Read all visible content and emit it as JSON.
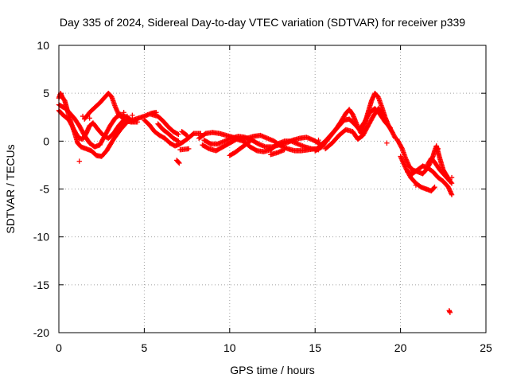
{
  "chart_data": {
    "type": "scatter",
    "title": "Day 335 of 2024, Sidereal Day-to-day VTEC variation (SDTVAR) for receiver p339",
    "xlabel": "GPS time / hours",
    "ylabel": "SDTVAR / TECUs",
    "xlim": [
      0,
      25
    ],
    "ylim": [
      -20,
      10
    ],
    "xticks": [
      0,
      5,
      10,
      15,
      20,
      25
    ],
    "yticks": [
      -20,
      -15,
      -10,
      -5,
      0,
      5,
      10
    ],
    "xtick_labels": [
      "0",
      "5",
      "10",
      "15",
      "20",
      "25"
    ],
    "ytick_labels": [
      "-20",
      "-15",
      "-10",
      "-5",
      "0",
      "5",
      "10"
    ],
    "grid": true,
    "marker": "+",
    "color": "#ff0000",
    "series": [
      {
        "name": "SDTVAR",
        "traces": [
          [
            [
              0,
              4.5
            ],
            [
              0.1,
              5.0
            ],
            [
              0.2,
              4.6
            ],
            [
              0.35,
              4.2
            ],
            [
              0.5,
              3.2
            ],
            [
              0.7,
              2.0
            ],
            [
              0.9,
              1.0
            ],
            [
              1.1,
              -0.2
            ],
            [
              1.3,
              -0.6
            ],
            [
              1.6,
              -0.8
            ],
            [
              1.9,
              -1.0
            ],
            [
              2.2,
              -1.5
            ],
            [
              2.5,
              -1.6
            ],
            [
              2.8,
              -1.0
            ],
            [
              3.2,
              0.2
            ],
            [
              3.6,
              1.2
            ],
            [
              4.0,
              2.0
            ],
            [
              4.5,
              2.3
            ],
            [
              5.0,
              2.6
            ],
            [
              5.4,
              2.9
            ],
            [
              5.7,
              3.0
            ]
          ],
          [
            [
              0,
              3.2
            ],
            [
              0.2,
              2.8
            ],
            [
              0.4,
              2.5
            ],
            [
              0.6,
              2.2
            ],
            [
              0.8,
              1.5
            ],
            [
              1.0,
              0.8
            ],
            [
              1.2,
              0.3
            ],
            [
              1.4,
              0.2
            ],
            [
              1.6,
              0.8
            ],
            [
              1.8,
              1.6
            ],
            [
              2.0,
              1.9
            ],
            [
              2.3,
              1.2
            ],
            [
              2.6,
              0.6
            ],
            [
              2.9,
              0.3
            ],
            [
              3.2,
              0.8
            ],
            [
              3.5,
              1.6
            ],
            [
              3.8,
              2.2
            ]
          ],
          [
            [
              0,
              3.8
            ],
            [
              0.2,
              3.6
            ],
            [
              0.4,
              3.4
            ],
            [
              0.6,
              3.0
            ],
            [
              0.9,
              2.4
            ],
            [
              1.2,
              1.6
            ],
            [
              1.5,
              0.6
            ],
            [
              1.8,
              -0.2
            ],
            [
              2.1,
              -0.6
            ],
            [
              2.4,
              -0.4
            ],
            [
              2.7,
              0.6
            ],
            [
              3.0,
              1.6
            ],
            [
              3.3,
              2.4
            ],
            [
              3.6,
              2.8
            ],
            [
              4.0,
              2.5
            ],
            [
              4.4,
              2.0
            ]
          ],
          [
            [
              1.5,
              2.3
            ],
            [
              1.8,
              3.0
            ],
            [
              2.1,
              3.5
            ],
            [
              2.4,
              4.0
            ],
            [
              2.7,
              4.6
            ],
            [
              2.9,
              5.0
            ],
            [
              3.1,
              4.6
            ],
            [
              3.3,
              3.6
            ],
            [
              3.5,
              2.8
            ],
            [
              3.8,
              2.3
            ],
            [
              4.2,
              2.0
            ],
            [
              4.6,
              2.0
            ]
          ],
          [
            [
              5.0,
              2.2
            ],
            [
              5.3,
              1.7
            ],
            [
              5.6,
              1.0
            ],
            [
              5.9,
              0.6
            ],
            [
              6.2,
              0.3
            ],
            [
              6.5,
              -0.2
            ],
            [
              6.8,
              -0.5
            ],
            [
              7.1,
              -0.3
            ],
            [
              7.5,
              0.2
            ],
            [
              7.9,
              0.8
            ],
            [
              8.3,
              0.8
            ]
          ],
          [
            [
              5.4,
              2.8
            ],
            [
              5.8,
              2.6
            ],
            [
              6.1,
              2.1
            ],
            [
              6.4,
              1.5
            ],
            [
              6.7,
              1.0
            ],
            [
              7.0,
              0.7
            ]
          ],
          [
            [
              5.8,
              1.8
            ],
            [
              6.1,
              1.2
            ],
            [
              6.4,
              0.8
            ],
            [
              6.7,
              0.3
            ],
            [
              7.0,
              0.0
            ]
          ],
          [
            [
              6.9,
              -2.0
            ],
            [
              7.05,
              -2.3
            ]
          ],
          [
            [
              7.2,
              1.0
            ],
            [
              7.5,
              0.6
            ]
          ],
          [
            [
              7.1,
              -0.9
            ],
            [
              7.6,
              -0.8
            ]
          ],
          [
            [
              8.2,
              0.3
            ],
            [
              8.6,
              0.8
            ],
            [
              9.0,
              0.9
            ],
            [
              9.4,
              0.8
            ],
            [
              9.8,
              0.6
            ],
            [
              10.2,
              0.4
            ],
            [
              10.6,
              0.2
            ],
            [
              11.0,
              0.3
            ],
            [
              11.4,
              0.5
            ],
            [
              11.8,
              0.6
            ],
            [
              12.2,
              0.3
            ],
            [
              12.6,
              0.0
            ],
            [
              13.0,
              -0.5
            ],
            [
              13.4,
              -0.8
            ],
            [
              13.8,
              -1.0
            ],
            [
              14.2,
              -1.0
            ],
            [
              14.6,
              -0.9
            ],
            [
              15.0,
              -0.8
            ]
          ],
          [
            [
              8.4,
              -0.4
            ],
            [
              8.8,
              -0.8
            ],
            [
              9.2,
              -1.0
            ],
            [
              9.6,
              -0.6
            ],
            [
              10.0,
              -0.2
            ],
            [
              10.4,
              0.2
            ],
            [
              10.8,
              0.0
            ],
            [
              11.2,
              -0.6
            ],
            [
              11.6,
              -1.0
            ],
            [
              12.0,
              -1.1
            ],
            [
              12.4,
              -0.9
            ],
            [
              12.8,
              -0.3
            ],
            [
              13.2,
              0.0
            ],
            [
              13.6,
              0.0
            ],
            [
              14.0,
              -0.3
            ],
            [
              14.4,
              -0.6
            ],
            [
              14.8,
              -0.8
            ],
            [
              15.2,
              -0.9
            ]
          ],
          [
            [
              8.5,
              0.1
            ],
            [
              8.9,
              -0.3
            ],
            [
              9.3,
              -0.3
            ],
            [
              9.7,
              0.0
            ],
            [
              10.1,
              0.3
            ],
            [
              10.5,
              0.5
            ],
            [
              10.9,
              0.4
            ],
            [
              11.3,
              0.1
            ],
            [
              11.7,
              -0.3
            ],
            [
              12.1,
              -0.6
            ],
            [
              12.5,
              -0.6
            ],
            [
              12.9,
              -0.4
            ],
            [
              13.3,
              -0.2
            ],
            [
              13.7,
              0.1
            ],
            [
              14.1,
              0.3
            ],
            [
              14.5,
              0.4
            ],
            [
              14.9,
              0.1
            ],
            [
              15.3,
              -0.3
            ]
          ],
          [
            [
              10.0,
              -1.5
            ],
            [
              10.3,
              -1.2
            ],
            [
              10.6,
              -0.8
            ],
            [
              10.9,
              -0.4
            ],
            [
              11.2,
              0.0
            ]
          ],
          [
            [
              12.4,
              -1.4
            ],
            [
              12.8,
              -1.2
            ],
            [
              13.2,
              -0.9
            ]
          ],
          [
            [
              15.0,
              -1.0
            ],
            [
              15.4,
              -0.6
            ],
            [
              15.8,
              0.3
            ],
            [
              16.2,
              1.2
            ],
            [
              16.5,
              2.0
            ],
            [
              16.8,
              2.9
            ],
            [
              17.0,
              3.3
            ],
            [
              17.2,
              2.8
            ],
            [
              17.5,
              1.5
            ],
            [
              17.7,
              0.8
            ],
            [
              17.9,
              1.8
            ],
            [
              18.1,
              3.0
            ],
            [
              18.3,
              4.2
            ],
            [
              18.5,
              5.0
            ],
            [
              18.7,
              4.6
            ],
            [
              18.9,
              3.6
            ],
            [
              19.1,
              2.5
            ],
            [
              19.3,
              1.6
            ],
            [
              19.5,
              1.0
            ],
            [
              19.7,
              0.3
            ]
          ],
          [
            [
              15.2,
              -0.6
            ],
            [
              15.6,
              0.0
            ],
            [
              16.0,
              0.8
            ],
            [
              16.4,
              1.6
            ],
            [
              16.7,
              2.2
            ],
            [
              17.0,
              2.3
            ],
            [
              17.3,
              1.8
            ],
            [
              17.6,
              1.2
            ],
            [
              17.9,
              2.0
            ],
            [
              18.2,
              3.0
            ],
            [
              18.5,
              3.4
            ],
            [
              18.8,
              2.8
            ],
            [
              19.1,
              2.0
            ],
            [
              19.4,
              1.4
            ]
          ],
          [
            [
              15.6,
              -0.8
            ],
            [
              16.0,
              -0.2
            ],
            [
              16.4,
              0.6
            ],
            [
              16.8,
              1.2
            ],
            [
              17.2,
              1.0
            ],
            [
              17.5,
              0.2
            ],
            [
              17.8,
              0.6
            ],
            [
              18.1,
              1.6
            ],
            [
              18.4,
              2.6
            ],
            [
              18.7,
              3.4
            ],
            [
              19.0,
              2.8
            ]
          ],
          [
            [
              19.8,
              0.2
            ],
            [
              20.1,
              -0.8
            ],
            [
              20.3,
              -1.8
            ],
            [
              20.5,
              -2.6
            ],
            [
              20.7,
              -3.0
            ],
            [
              21.0,
              -3.2
            ],
            [
              21.3,
              -3.4
            ],
            [
              21.5,
              -3.0
            ],
            [
              21.7,
              -2.4
            ],
            [
              21.9,
              -1.6
            ],
            [
              22.0,
              -1.0
            ],
            [
              22.1,
              -0.5
            ],
            [
              22.3,
              -1.8
            ],
            [
              22.5,
              -3.0
            ],
            [
              22.7,
              -3.6
            ],
            [
              22.9,
              -4.2
            ]
          ],
          [
            [
              20.0,
              -1.6
            ],
            [
              20.3,
              -2.8
            ],
            [
              20.6,
              -3.8
            ],
            [
              20.9,
              -4.4
            ],
            [
              21.2,
              -4.8
            ],
            [
              21.5,
              -5.0
            ],
            [
              21.8,
              -5.2
            ],
            [
              22.0,
              -4.8
            ]
          ],
          [
            [
              20.4,
              -3.2
            ],
            [
              20.7,
              -3.4
            ],
            [
              21.0,
              -3.0
            ],
            [
              21.3,
              -2.6
            ],
            [
              21.6,
              -2.8
            ],
            [
              21.9,
              -3.2
            ],
            [
              22.2,
              -3.8
            ],
            [
              22.5,
              -4.2
            ],
            [
              22.8,
              -4.8
            ],
            [
              23.0,
              -5.6
            ]
          ],
          [
            [
              21.6,
              -2.4
            ],
            [
              21.8,
              -1.8
            ],
            [
              22.0,
              -2.2
            ],
            [
              22.3,
              -3.0
            ],
            [
              22.6,
              -3.6
            ],
            [
              22.8,
              -4.0
            ],
            [
              23.0,
              -4.4
            ]
          ],
          [
            [
              22.85,
              -17.7
            ],
            [
              22.9,
              -17.9
            ]
          ]
        ],
        "scatter": [
          [
            1.2,
            -2.1
          ],
          [
            1.4,
            2.6
          ],
          [
            1.8,
            2.4
          ],
          [
            4.3,
            2.7
          ],
          [
            4.0,
            2.6
          ],
          [
            3.8,
            3.0
          ],
          [
            7.0,
            -2.2
          ],
          [
            15.2,
            0.1
          ],
          [
            19.2,
            -0.2
          ],
          [
            20.9,
            -4.6
          ],
          [
            22.1,
            -0.6
          ],
          [
            22.2,
            -0.8
          ],
          [
            23.0,
            -3.8
          ]
        ]
      }
    ]
  }
}
